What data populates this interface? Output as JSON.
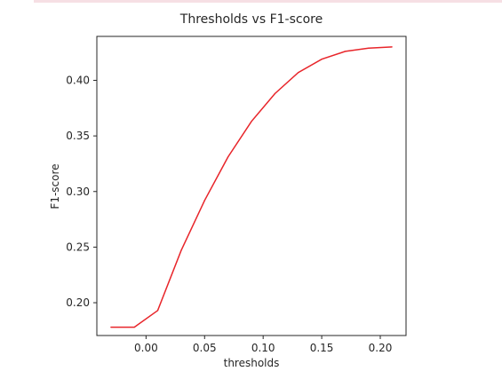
{
  "colors": {
    "line": "#e8252a",
    "axes": "#262626",
    "top_rule": "#f6dfe4"
  },
  "chart_data": {
    "type": "line",
    "title": "Thresholds vs F1-score",
    "xlabel": "thresholds",
    "ylabel": "F1-score",
    "xlim": [
      -0.042,
      0.222
    ],
    "ylim": [
      0.1705,
      0.4395
    ],
    "xticks": [
      0.0,
      0.05,
      0.1,
      0.15,
      0.2
    ],
    "xtick_labels": [
      "0.00",
      "0.05",
      "0.10",
      "0.15",
      "0.20"
    ],
    "yticks": [
      0.2,
      0.25,
      0.3,
      0.35,
      0.4
    ],
    "ytick_labels": [
      "0.20",
      "0.25",
      "0.30",
      "0.35",
      "0.40"
    ],
    "grid": false,
    "series": [
      {
        "x": [
          -0.03,
          -0.01,
          0.01,
          0.03,
          0.05,
          0.07,
          0.09,
          0.11,
          0.13,
          0.15,
          0.17,
          0.19,
          0.21
        ],
        "y": [
          0.178,
          0.178,
          0.193,
          0.247,
          0.292,
          0.331,
          0.363,
          0.388,
          0.407,
          0.419,
          0.426,
          0.429,
          0.43
        ]
      }
    ]
  }
}
